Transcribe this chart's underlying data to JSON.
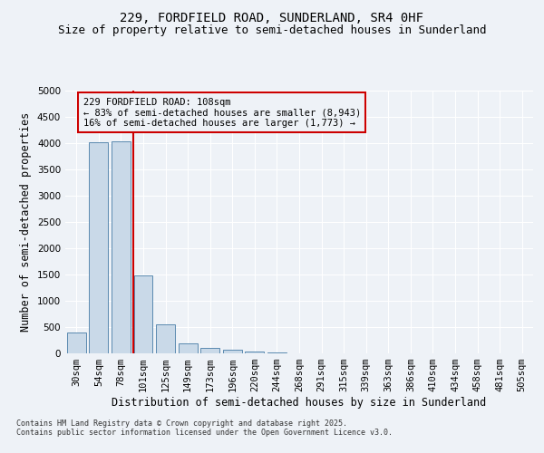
{
  "title_line1": "229, FORDFIELD ROAD, SUNDERLAND, SR4 0HF",
  "title_line2": "Size of property relative to semi-detached houses in Sunderland",
  "xlabel": "Distribution of semi-detached houses by size in Sunderland",
  "ylabel": "Number of semi-detached properties",
  "footnote": "Contains HM Land Registry data © Crown copyright and database right 2025.\nContains public sector information licensed under the Open Government Licence v3.0.",
  "categories": [
    "30sqm",
    "54sqm",
    "78sqm",
    "101sqm",
    "125sqm",
    "149sqm",
    "173sqm",
    "196sqm",
    "220sqm",
    "244sqm",
    "268sqm",
    "291sqm",
    "315sqm",
    "339sqm",
    "363sqm",
    "386sqm",
    "410sqm",
    "434sqm",
    "458sqm",
    "481sqm",
    "505sqm"
  ],
  "values": [
    390,
    4010,
    4030,
    1480,
    555,
    185,
    100,
    65,
    40,
    25,
    0,
    0,
    0,
    0,
    0,
    0,
    0,
    0,
    0,
    0,
    0
  ],
  "bar_color": "#c9d9e8",
  "bar_edge_color": "#5a8ab0",
  "vline_color": "#cc0000",
  "annotation_box_text": "229 FORDFIELD ROAD: 108sqm\n← 83% of semi-detached houses are smaller (8,943)\n16% of semi-detached houses are larger (1,773) →",
  "ylim": [
    0,
    5000
  ],
  "background_color": "#eef2f7",
  "grid_color": "#ffffff",
  "title_fontsize": 10,
  "subtitle_fontsize": 9,
  "axis_label_fontsize": 8.5,
  "tick_fontsize": 7.5,
  "annotation_fontsize": 7.5,
  "footnote_fontsize": 6
}
